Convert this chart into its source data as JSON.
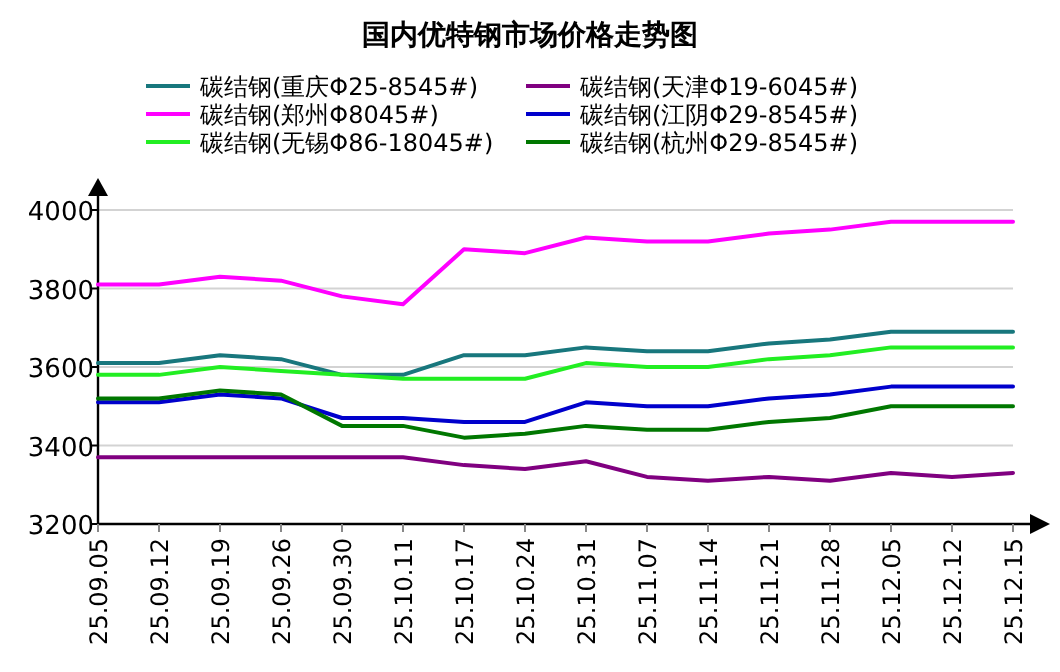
{
  "chart_data": {
    "type": "line",
    "title": "国内优特钢市场价格走势图",
    "categories": [
      "25.09.05",
      "25.09.12",
      "25.09.19",
      "25.09.26",
      "25.09.30",
      "25.10.11",
      "25.10.17",
      "25.10.24",
      "25.10.31",
      "25.11.07",
      "25.11.14",
      "25.11.21",
      "25.11.28",
      "25.12.05",
      "25.12.12",
      "25.12.15"
    ],
    "series": [
      {
        "name": "碳结钢(重庆Φ25-8545#)",
        "color": "#18777d",
        "values": [
          3610,
          3610,
          3630,
          3620,
          3580,
          3580,
          3630,
          3630,
          3650,
          3640,
          3640,
          3660,
          3670,
          3690,
          3690,
          3690
        ]
      },
      {
        "name": "碳结钢(天津Φ19-6045#)",
        "color": "#800080",
        "values": [
          3370,
          3370,
          3370,
          3370,
          3370,
          3370,
          3350,
          3340,
          3360,
          3320,
          3310,
          3320,
          3310,
          3330,
          3320,
          3330
        ]
      },
      {
        "name": "碳结钢(郑州Φ8045#)",
        "color": "#ff00ff",
        "values": [
          3810,
          3810,
          3830,
          3820,
          3780,
          3760,
          3900,
          3890,
          3930,
          3920,
          3920,
          3940,
          3950,
          3970,
          3970,
          3970
        ]
      },
      {
        "name": "碳结钢(江阴Φ29-8545#)",
        "color": "#0000cc",
        "values": [
          3510,
          3510,
          3530,
          3520,
          3470,
          3470,
          3460,
          3460,
          3510,
          3500,
          3500,
          3520,
          3530,
          3550,
          3550,
          3550
        ]
      },
      {
        "name": "碳结钢(无锡Φ86-18045#)",
        "color": "#22ee22",
        "values": [
          3580,
          3580,
          3600,
          3590,
          3580,
          3570,
          3570,
          3570,
          3610,
          3600,
          3600,
          3620,
          3630,
          3650,
          3650,
          3650
        ]
      },
      {
        "name": "碳结钢(杭州Φ29-8545#)",
        "color": "#007700",
        "values": [
          3520,
          3520,
          3540,
          3530,
          3450,
          3450,
          3420,
          3430,
          3450,
          3440,
          3440,
          3460,
          3470,
          3500,
          3500,
          3500
        ]
      }
    ],
    "ylim": [
      3200,
      4000
    ],
    "yticks": [
      3200,
      3400,
      3600,
      3800,
      4000
    ],
    "grid": "y",
    "legend": "top"
  }
}
